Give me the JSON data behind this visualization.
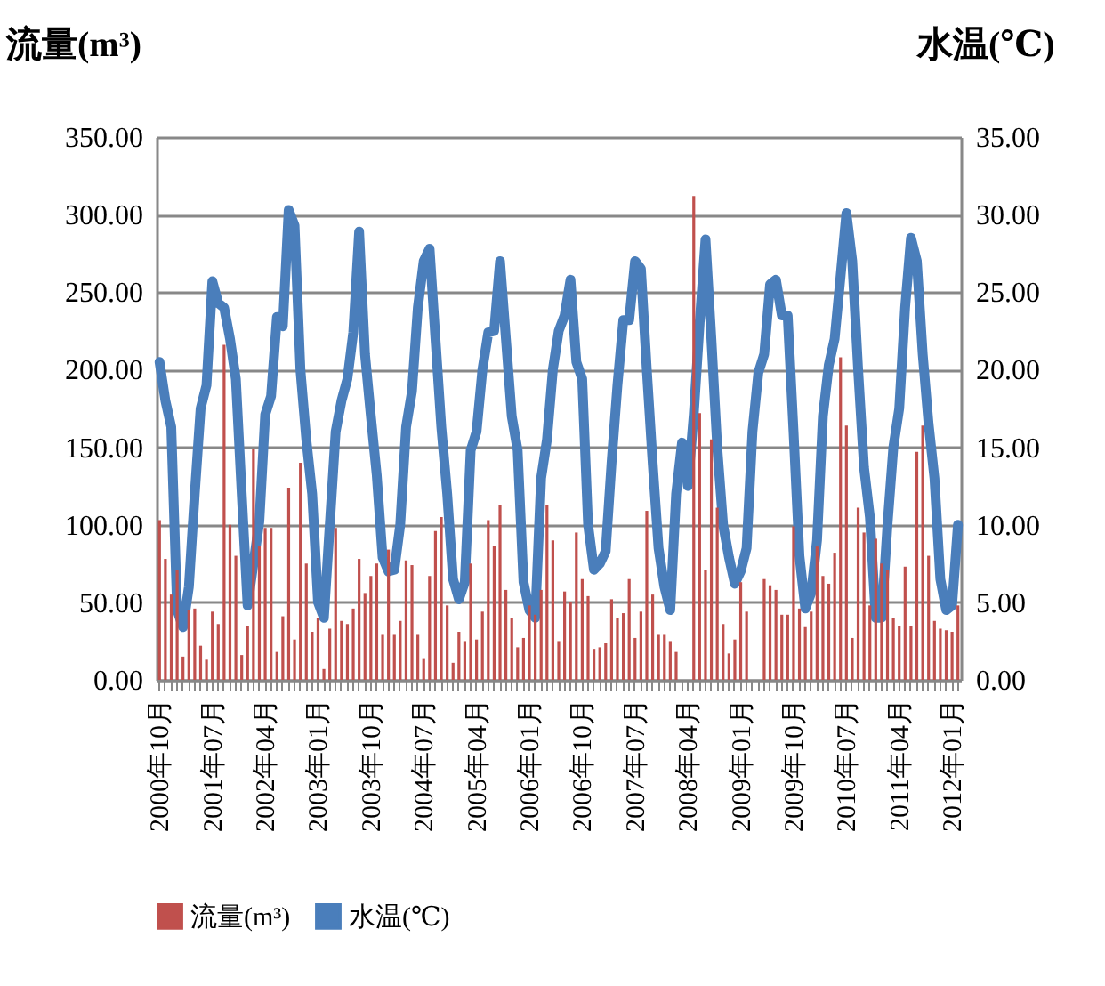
{
  "chart_data": {
    "type": "bar",
    "categories": [
      "2000年10月",
      null,
      null,
      null,
      null,
      null,
      null,
      null,
      null,
      "2001年07月",
      null,
      null,
      null,
      null,
      null,
      null,
      null,
      null,
      "2002年04月",
      null,
      null,
      null,
      null,
      null,
      null,
      null,
      null,
      "2003年01月",
      null,
      null,
      null,
      null,
      null,
      null,
      null,
      null,
      "2003年10月",
      null,
      null,
      null,
      null,
      null,
      null,
      null,
      null,
      "2004年07月",
      null,
      null,
      null,
      null,
      null,
      null,
      null,
      null,
      "2005年04月",
      null,
      null,
      null,
      null,
      null,
      null,
      null,
      null,
      "2006年01月",
      null,
      null,
      null,
      null,
      null,
      null,
      null,
      null,
      "2006年10月",
      null,
      null,
      null,
      null,
      null,
      null,
      null,
      null,
      "2007年07月",
      null,
      null,
      null,
      null,
      null,
      null,
      null,
      null,
      "2008年04月",
      null,
      null,
      null,
      null,
      null,
      null,
      null,
      null,
      "2009年01月",
      null,
      null,
      null,
      null,
      null,
      null,
      null,
      null,
      "2009年10月",
      null,
      null,
      null,
      null,
      null,
      null,
      null,
      null,
      "2010年07月",
      null,
      null,
      null,
      null,
      null,
      null,
      null,
      null,
      "2011年04月",
      null,
      null,
      null,
      null,
      null,
      null,
      null,
      null,
      "2012年01月",
      null
    ],
    "series": [
      {
        "name": "流量(m³)",
        "color": "#c0504d",
        "values": [
          103,
          78,
          55,
          71,
          15,
          45,
          46,
          22,
          13,
          44,
          36,
          216,
          100,
          80,
          16,
          35,
          149,
          86,
          98,
          98,
          18,
          41,
          124,
          26,
          140,
          75,
          31,
          40,
          7,
          33,
          98,
          38,
          36,
          46,
          78,
          56,
          67,
          75,
          29,
          84,
          29,
          38,
          77,
          74,
          29,
          14,
          67,
          96,
          105,
          48,
          11,
          31,
          25,
          75,
          26,
          44,
          103,
          86,
          113,
          58,
          40,
          21,
          27,
          48,
          42,
          58,
          113,
          90,
          25,
          57,
          50,
          95,
          65,
          54,
          20,
          21,
          24,
          52,
          40,
          43,
          65,
          27,
          44,
          109,
          55,
          29,
          29,
          25,
          18,
          null,
          null,
          312,
          172,
          71,
          155,
          111,
          36,
          17,
          26,
          63,
          44,
          null,
          null,
          65,
          61,
          58,
          42,
          42,
          99,
          46,
          34,
          44,
          86,
          67,
          62,
          82,
          208,
          164,
          27,
          111,
          95,
          48,
          91,
          75,
          71,
          40,
          35,
          73,
          35,
          147,
          164,
          80,
          38,
          33,
          32,
          31,
          48
        ]
      },
      {
        "name": "水温(℃)",
        "type": "line",
        "axis": "y2",
        "color": "#4a7ebb",
        "values": [
          20.5,
          18,
          16.3,
          4.5,
          3.4,
          6,
          12,
          17.5,
          19,
          25.7,
          24.3,
          24,
          22,
          19.4,
          12,
          4.8,
          7.5,
          10.2,
          17.1,
          18.3,
          23.4,
          22.8,
          30.3,
          29.3,
          20,
          15.5,
          12,
          5,
          4,
          10,
          16,
          18,
          19.4,
          22.4,
          28.9,
          21,
          17,
          13.2,
          7.9,
          7,
          7.1,
          10,
          16.3,
          18.6,
          24,
          27,
          27.8,
          22,
          16.3,
          12,
          6.5,
          5.2,
          6.3,
          14.8,
          16,
          20,
          22.4,
          22.5,
          27,
          22,
          17,
          14.8,
          6.3,
          4.5,
          4,
          13,
          15.5,
          20,
          22.5,
          23.5,
          25.8,
          20.5,
          19.4,
          10,
          7.1,
          7.5,
          8.3,
          14,
          19,
          23.2,
          23.2,
          27,
          26.5,
          20,
          14,
          8.5,
          6,
          4.5,
          12,
          15.3,
          12.5,
          17.1,
          23,
          28.4,
          22,
          15,
          10,
          7.9,
          6.2,
          7,
          8.5,
          16,
          19.8,
          21,
          25.5,
          25.8,
          23.5,
          23.5,
          16,
          8,
          4.6,
          5.6,
          9,
          17,
          20.3,
          22,
          26,
          30.1,
          27,
          20,
          13.7,
          10.5,
          4,
          4,
          10,
          15,
          17.5,
          24,
          28.5,
          27,
          21,
          16.5,
          13,
          6.5,
          4.5,
          4.8,
          10
        ]
      }
    ],
    "ylabel": "流量(m³)",
    "y2label": "水温(℃)",
    "ylim": [
      0,
      350
    ],
    "yticks": [
      {
        "value": 0,
        "label": "0.00"
      },
      {
        "value": 50,
        "label": "50.00"
      },
      {
        "value": 100,
        "label": "100.00"
      },
      {
        "value": 150,
        "label": "150.00"
      },
      {
        "value": 200,
        "label": "200.00"
      },
      {
        "value": 250,
        "label": "250.00"
      },
      {
        "value": 300,
        "label": "300.00"
      },
      {
        "value": 350,
        "label": "350.00"
      }
    ],
    "y2lim": [
      0,
      35
    ],
    "y2ticks": [
      {
        "value": 0,
        "label": "0.00"
      },
      {
        "value": 5,
        "label": "5.00"
      },
      {
        "value": 10,
        "label": "10.00"
      },
      {
        "value": 15,
        "label": "15.00"
      },
      {
        "value": 20,
        "label": "20.00"
      },
      {
        "value": 25,
        "label": "25.00"
      },
      {
        "value": 30,
        "label": "30.00"
      },
      {
        "value": 35,
        "label": "35.00"
      }
    ],
    "grid": "y",
    "legend": "bottom"
  }
}
